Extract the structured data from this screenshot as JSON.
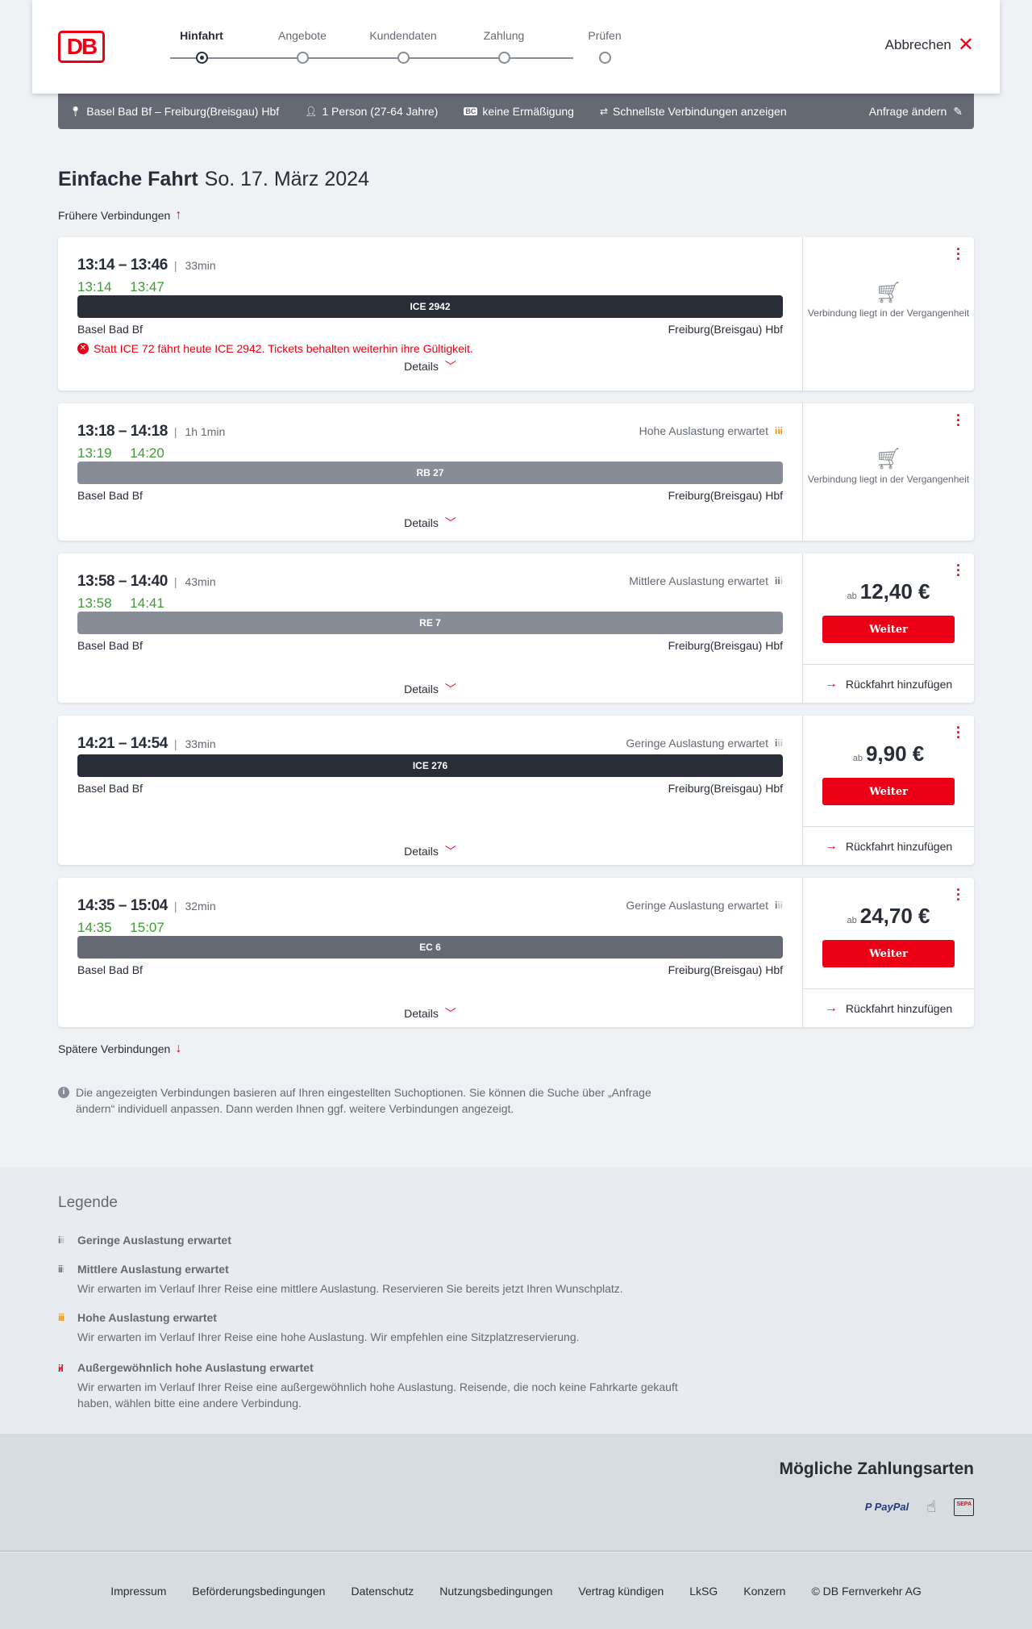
{
  "header": {
    "logo": "DB",
    "steps": [
      "Hinfahrt",
      "Angebote",
      "Kundendaten",
      "Zahlung",
      "Prüfen"
    ],
    "active_step": 0,
    "cancel": "Abbrechen"
  },
  "query": {
    "route": "Basel Bad Bf – Freiburg(Breisgau) Hbf",
    "passengers": "1 Person (27-64 Jahre)",
    "discount_badge": "BC",
    "discount": "keine Ermäßigung",
    "fastest": "Schnellste Verbindungen anzeigen",
    "edit": "Anfrage ändern"
  },
  "page": {
    "title": "Einfache Fahrt",
    "date": "So. 17. März 2024",
    "earlier": "Frühere Verbindungen",
    "later": "Spätere Verbindungen",
    "details": "Details",
    "past_msg": "Verbindung liegt in der Vergangenheit",
    "ab": "ab",
    "continue": "Weiter",
    "return": "Rückfahrt hinzufügen",
    "info": "Die angezeigten Verbindungen basieren auf Ihren eingestellten Suchoptionen. Sie können die Suche über „Anfrage ändern“ individuell anpassen. Dann werden Ihnen ggf. weitere Verbindungen angezeigt."
  },
  "connections": [
    {
      "times": "13:14 – 13:46",
      "duration": "33min",
      "real_dep": "13:14",
      "real_arr": "13:47",
      "train": "ICE 2942",
      "train_color": "#282d37",
      "from": "Basel Bad Bf",
      "to": "Freiburg(Breisgau) Hbf",
      "warning": "Statt ICE 72 fährt heute ICE 2942. Tickets behalten weiterhin ihre Gültigkeit.",
      "load": "",
      "past": true
    },
    {
      "times": "13:18 – 14:18",
      "duration": "1h 1min",
      "real_dep": "13:19",
      "real_arr": "14:20",
      "train": "RB 27",
      "train_color": "#878c96",
      "from": "Basel Bad Bf",
      "to": "Freiburg(Breisgau) Hbf",
      "load": "Hohe Auslastung erwartet",
      "load_level": "high",
      "past": true
    },
    {
      "times": "13:58 – 14:40",
      "duration": "43min",
      "real_dep": "13:58",
      "real_arr": "14:41",
      "train": "RE 7",
      "train_color": "#878c96",
      "from": "Basel Bad Bf",
      "to": "Freiburg(Breisgau) Hbf",
      "load": "Mittlere Auslastung erwartet",
      "load_level": "medium",
      "price": "12,40 €"
    },
    {
      "times": "14:21 – 14:54",
      "duration": "33min",
      "real_dep": "",
      "real_arr": "",
      "train": "ICE 276",
      "train_color": "#282d37",
      "from": "Basel Bad Bf",
      "to": "Freiburg(Breisgau) Hbf",
      "load": "Geringe Auslastung erwartet",
      "load_level": "low",
      "price": "9,90 €"
    },
    {
      "times": "14:35 – 15:04",
      "duration": "32min",
      "real_dep": "14:35",
      "real_arr": "15:07",
      "train": "EC 6",
      "train_color": "#646973",
      "from": "Basel Bad Bf",
      "to": "Freiburg(Breisgau) Hbf",
      "load": "Geringe Auslastung erwartet",
      "load_level": "low",
      "price": "24,70 €"
    }
  ],
  "legend": {
    "title": "Legende",
    "items": [
      {
        "title": "Geringe Auslastung erwartet",
        "text": ""
      },
      {
        "title": "Mittlere Auslastung erwartet",
        "text": "Wir erwarten im Verlauf Ihrer Reise eine mittlere Auslastung. Reservieren Sie bereits jetzt Ihren Wunschplatz."
      },
      {
        "title": "Hohe Auslastung erwartet",
        "text": "Wir erwarten im Verlauf Ihrer Reise eine hohe Auslastung. Wir empfehlen eine Sitzplatzreservierung."
      },
      {
        "title": "Außergewöhnlich hohe Auslastung erwartet",
        "text": "Wir erwarten im Verlauf Ihrer Reise eine außergewöhnlich hohe Auslastung. Reisende, die noch keine Fahrkarte gekauft haben, wählen bitte eine andere Verbindung."
      }
    ]
  },
  "payment": {
    "title": "Mögliche Zahlungsarten",
    "methods": [
      "PayPal",
      "credit-card-icon",
      "SEPA"
    ]
  },
  "footer": {
    "links": [
      "Impressum",
      "Beförderungsbedingungen",
      "Datenschutz",
      "Nutzungsbedingungen",
      "Vertrag kündigen",
      "LkSG",
      "Konzern",
      "© DB Fernverkehr AG"
    ]
  },
  "colors": {
    "accent": "#ec0016",
    "realtime": "#3f9c35",
    "high_load": "#f39200"
  }
}
